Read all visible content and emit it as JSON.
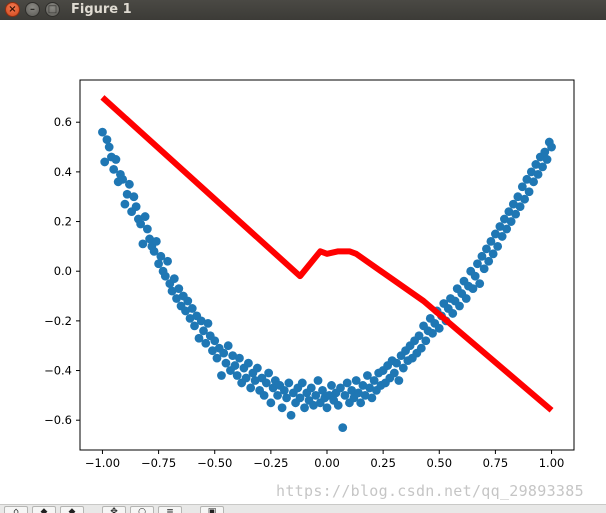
{
  "window": {
    "title": "Figure 1",
    "close_glyph": "×",
    "minimize_glyph": "–",
    "maximize_glyph": "□"
  },
  "watermark": "https://blog.csdn.net/qq_29893385",
  "toolbar": {
    "buttons": [
      {
        "name": "home-button",
        "icon": "home-icon",
        "glyph": "⌂"
      },
      {
        "name": "back-button",
        "icon": "back-arrow-icon",
        "glyph": "◆"
      },
      {
        "name": "forward-button",
        "icon": "forward-arrow-icon",
        "glyph": "◆"
      },
      {
        "name": "pan-button",
        "icon": "pan-icon",
        "glyph": "✥"
      },
      {
        "name": "zoom-button",
        "icon": "zoom-icon",
        "glyph": "○"
      },
      {
        "name": "configure-button",
        "icon": "sliders-icon",
        "glyph": "≡"
      },
      {
        "name": "save-button",
        "icon": "save-icon",
        "glyph": "▣"
      }
    ]
  },
  "colors": {
    "scatter": "#1f77b4",
    "line": "#ff0000"
  },
  "chart_data": {
    "type": "scatter",
    "title": "",
    "xlabel": "",
    "ylabel": "",
    "xlim": [
      -1.1,
      1.1
    ],
    "ylim": [
      -0.72,
      0.77
    ],
    "xticks": [
      -1.0,
      -0.75,
      -0.5,
      -0.25,
      0.0,
      0.25,
      0.5,
      0.75,
      1.0
    ],
    "xtick_labels": [
      "−1.00",
      "−0.75",
      "−0.50",
      "−0.25",
      "0.00",
      "0.25",
      "0.50",
      "0.75",
      "1.00"
    ],
    "yticks": [
      0.6,
      0.4,
      0.2,
      0.0,
      -0.2,
      -0.4,
      -0.6
    ],
    "ytick_labels": [
      "0.6",
      "0.4",
      "0.2",
      "0.0",
      "−0.2",
      "−0.4",
      "−0.6"
    ],
    "grid": false,
    "series": [
      {
        "kind": "scatter",
        "points": [
          [
            -1.0,
            0.56
          ],
          [
            -0.99,
            0.44
          ],
          [
            -0.98,
            0.53
          ],
          [
            -0.97,
            0.5
          ],
          [
            -0.96,
            0.46
          ],
          [
            -0.95,
            0.41
          ],
          [
            -0.94,
            0.45
          ],
          [
            -0.93,
            0.36
          ],
          [
            -0.92,
            0.39
          ],
          [
            -0.91,
            0.37
          ],
          [
            -0.9,
            0.27
          ],
          [
            -0.89,
            0.31
          ],
          [
            -0.88,
            0.35
          ],
          [
            -0.87,
            0.24
          ],
          [
            -0.86,
            0.3
          ],
          [
            -0.85,
            0.26
          ],
          [
            -0.84,
            0.21
          ],
          [
            -0.83,
            0.19
          ],
          [
            -0.82,
            0.11
          ],
          [
            -0.81,
            0.22
          ],
          [
            -0.8,
            0.17
          ],
          [
            -0.79,
            0.13
          ],
          [
            -0.78,
            0.1
          ],
          [
            -0.77,
            0.08
          ],
          [
            -0.76,
            0.12
          ],
          [
            -0.75,
            0.03
          ],
          [
            -0.74,
            0.06
          ],
          [
            -0.73,
            0.0
          ],
          [
            -0.72,
            -0.02
          ],
          [
            -0.71,
            0.04
          ],
          [
            -0.7,
            -0.05
          ],
          [
            -0.69,
            -0.08
          ],
          [
            -0.68,
            -0.03
          ],
          [
            -0.67,
            -0.11
          ],
          [
            -0.66,
            -0.07
          ],
          [
            -0.65,
            -0.14
          ],
          [
            -0.64,
            -0.1
          ],
          [
            -0.63,
            -0.16
          ],
          [
            -0.62,
            -0.12
          ],
          [
            -0.61,
            -0.19
          ],
          [
            -0.6,
            -0.15
          ],
          [
            -0.59,
            -0.22
          ],
          [
            -0.58,
            -0.18
          ],
          [
            -0.57,
            -0.27
          ],
          [
            -0.56,
            -0.2
          ],
          [
            -0.55,
            -0.24
          ],
          [
            -0.54,
            -0.29
          ],
          [
            -0.53,
            -0.21
          ],
          [
            -0.52,
            -0.26
          ],
          [
            -0.51,
            -0.32
          ],
          [
            -0.5,
            -0.28
          ],
          [
            -0.49,
            -0.35
          ],
          [
            -0.48,
            -0.31
          ],
          [
            -0.47,
            -0.42
          ],
          [
            -0.46,
            -0.33
          ],
          [
            -0.45,
            -0.37
          ],
          [
            -0.44,
            -0.3
          ],
          [
            -0.43,
            -0.4
          ],
          [
            -0.42,
            -0.34
          ],
          [
            -0.41,
            -0.38
          ],
          [
            -0.4,
            -0.42
          ],
          [
            -0.39,
            -0.35
          ],
          [
            -0.38,
            -0.45
          ],
          [
            -0.37,
            -0.39
          ],
          [
            -0.36,
            -0.43
          ],
          [
            -0.35,
            -0.37
          ],
          [
            -0.34,
            -0.47
          ],
          [
            -0.33,
            -0.41
          ],
          [
            -0.32,
            -0.44
          ],
          [
            -0.31,
            -0.39
          ],
          [
            -0.3,
            -0.48
          ],
          [
            -0.29,
            -0.43
          ],
          [
            -0.28,
            -0.5
          ],
          [
            -0.27,
            -0.45
          ],
          [
            -0.26,
            -0.41
          ],
          [
            -0.25,
            -0.53
          ],
          [
            -0.24,
            -0.47
          ],
          [
            -0.23,
            -0.44
          ],
          [
            -0.22,
            -0.5
          ],
          [
            -0.21,
            -0.46
          ],
          [
            -0.2,
            -0.55
          ],
          [
            -0.19,
            -0.48
          ],
          [
            -0.18,
            -0.51
          ],
          [
            -0.17,
            -0.45
          ],
          [
            -0.16,
            -0.58
          ],
          [
            -0.15,
            -0.49
          ],
          [
            -0.14,
            -0.53
          ],
          [
            -0.13,
            -0.47
          ],
          [
            -0.12,
            -0.51
          ],
          [
            -0.11,
            -0.45
          ],
          [
            -0.1,
            -0.55
          ],
          [
            -0.09,
            -0.49
          ],
          [
            -0.08,
            -0.52
          ],
          [
            -0.07,
            -0.47
          ],
          [
            -0.06,
            -0.54
          ],
          [
            -0.05,
            -0.5
          ],
          [
            -0.04,
            -0.44
          ],
          [
            -0.03,
            -0.53
          ],
          [
            -0.02,
            -0.48
          ],
          [
            -0.01,
            -0.51
          ],
          [
            0.0,
            -0.55
          ],
          [
            0.01,
            -0.5
          ],
          [
            0.02,
            -0.46
          ],
          [
            0.03,
            -0.52
          ],
          [
            0.04,
            -0.49
          ],
          [
            0.05,
            -0.54
          ],
          [
            0.06,
            -0.47
          ],
          [
            0.07,
            -0.63
          ],
          [
            0.08,
            -0.5
          ],
          [
            0.09,
            -0.45
          ],
          [
            0.1,
            -0.53
          ],
          [
            0.11,
            -0.48
          ],
          [
            0.12,
            -0.51
          ],
          [
            0.13,
            -0.44
          ],
          [
            0.14,
            -0.49
          ],
          [
            0.15,
            -0.53
          ],
          [
            0.16,
            -0.46
          ],
          [
            0.17,
            -0.5
          ],
          [
            0.18,
            -0.42
          ],
          [
            0.19,
            -0.47
          ],
          [
            0.2,
            -0.51
          ],
          [
            0.21,
            -0.44
          ],
          [
            0.22,
            -0.48
          ],
          [
            0.23,
            -0.41
          ],
          [
            0.24,
            -0.46
          ],
          [
            0.25,
            -0.4
          ],
          [
            0.26,
            -0.45
          ],
          [
            0.27,
            -0.38
          ],
          [
            0.28,
            -0.43
          ],
          [
            0.29,
            -0.36
          ],
          [
            0.3,
            -0.41
          ],
          [
            0.31,
            -0.37
          ],
          [
            0.32,
            -0.44
          ],
          [
            0.33,
            -0.34
          ],
          [
            0.34,
            -0.39
          ],
          [
            0.35,
            -0.32
          ],
          [
            0.36,
            -0.36
          ],
          [
            0.37,
            -0.3
          ],
          [
            0.38,
            -0.35
          ],
          [
            0.39,
            -0.28
          ],
          [
            0.4,
            -0.33
          ],
          [
            0.41,
            -0.26
          ],
          [
            0.42,
            -0.31
          ],
          [
            0.43,
            -0.22
          ],
          [
            0.44,
            -0.28
          ],
          [
            0.45,
            -0.24
          ],
          [
            0.46,
            -0.19
          ],
          [
            0.47,
            -0.25
          ],
          [
            0.48,
            -0.21
          ],
          [
            0.49,
            -0.16
          ],
          [
            0.5,
            -0.23
          ],
          [
            0.51,
            -0.18
          ],
          [
            0.52,
            -0.13
          ],
          [
            0.53,
            -0.2
          ],
          [
            0.54,
            -0.15
          ],
          [
            0.55,
            -0.11
          ],
          [
            0.56,
            -0.17
          ],
          [
            0.57,
            -0.12
          ],
          [
            0.58,
            -0.07
          ],
          [
            0.59,
            -0.14
          ],
          [
            0.6,
            -0.09
          ],
          [
            0.61,
            -0.04
          ],
          [
            0.62,
            -0.11
          ],
          [
            0.63,
            -0.06
          ],
          [
            0.64,
            0.0
          ],
          [
            0.65,
            -0.07
          ],
          [
            0.66,
            -0.02
          ],
          [
            0.67,
            0.03
          ],
          [
            0.68,
            -0.05
          ],
          [
            0.69,
            0.06
          ],
          [
            0.7,
            0.01
          ],
          [
            0.71,
            0.09
          ],
          [
            0.72,
            0.04
          ],
          [
            0.73,
            0.12
          ],
          [
            0.74,
            0.07
          ],
          [
            0.75,
            0.15
          ],
          [
            0.76,
            0.1
          ],
          [
            0.77,
            0.18
          ],
          [
            0.78,
            0.14
          ],
          [
            0.79,
            0.21
          ],
          [
            0.8,
            0.17
          ],
          [
            0.81,
            0.24
          ],
          [
            0.82,
            0.2
          ],
          [
            0.83,
            0.27
          ],
          [
            0.84,
            0.23
          ],
          [
            0.85,
            0.3
          ],
          [
            0.86,
            0.26
          ],
          [
            0.87,
            0.34
          ],
          [
            0.88,
            0.29
          ],
          [
            0.89,
            0.37
          ],
          [
            0.9,
            0.32
          ],
          [
            0.91,
            0.4
          ],
          [
            0.92,
            0.36
          ],
          [
            0.93,
            0.43
          ],
          [
            0.94,
            0.39
          ],
          [
            0.95,
            0.46
          ],
          [
            0.96,
            0.42
          ],
          [
            0.97,
            0.48
          ],
          [
            0.98,
            0.45
          ],
          [
            0.99,
            0.52
          ],
          [
            1.0,
            0.5
          ]
        ]
      },
      {
        "kind": "line",
        "points": [
          [
            -1.0,
            0.7
          ],
          [
            -0.12,
            -0.02
          ],
          [
            -0.03,
            0.08
          ],
          [
            0.0,
            0.07
          ],
          [
            0.05,
            0.08
          ],
          [
            0.1,
            0.08
          ],
          [
            0.13,
            0.07
          ],
          [
            0.43,
            -0.12
          ],
          [
            1.0,
            -0.56
          ]
        ]
      }
    ]
  }
}
